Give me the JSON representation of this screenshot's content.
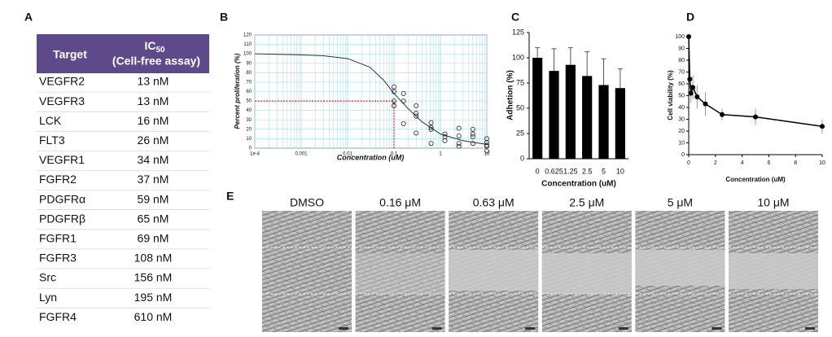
{
  "panel_labels": [
    "A",
    "B",
    "C",
    "D",
    "E"
  ],
  "table": {
    "header": {
      "target": "Target",
      "ic50": {
        "main": "IC",
        "sub": "50",
        "note": "(Cell-free assay)"
      },
      "color": "#5e4a8b"
    },
    "rows": [
      [
        "VEGFR2",
        "13 nM"
      ],
      [
        "VEGFR3",
        "13 nM"
      ],
      [
        "LCK",
        "16 nM"
      ],
      [
        "FLT3",
        "26 nM"
      ],
      [
        "VEGFR1",
        "34 nM"
      ],
      [
        "FGFR2",
        "37 nM"
      ],
      [
        "PDGFRα",
        "59 nM"
      ],
      [
        "PDGFRβ",
        "65 nM"
      ],
      [
        "FGFR1",
        "69 nM"
      ],
      [
        "FGFR3",
        "108 nM"
      ],
      [
        "Src",
        "156 nM"
      ],
      [
        "Lyn",
        "195 nM"
      ],
      [
        "FGFR4",
        "610 nM"
      ]
    ]
  },
  "chart_data": [
    {
      "type": "log-scatter",
      "x_label": "Concentration (uM)",
      "y_label": "Percent proliferation (%)",
      "xlim": [
        0.0001,
        10
      ],
      "xticks": [
        {
          "value": 0.0001,
          "label": "1e-4"
        },
        0.001,
        0.01,
        0.1,
        1,
        10
      ],
      "ylim": [
        0,
        120
      ],
      "yticks": [
        0,
        10,
        20,
        30,
        40,
        50,
        60,
        70,
        80,
        90,
        100,
        110,
        120
      ],
      "log_x": true,
      "grid": true,
      "minor_grid": true,
      "grid_color": "#9fdcee",
      "points": {
        "x": [
          0.1,
          0.1,
          0.1,
          0.1,
          0.16,
          0.16,
          0.16,
          0.3,
          0.3,
          0.3,
          0.3,
          0.63,
          0.63,
          0.63,
          0.63,
          1.25,
          1.25,
          1.25,
          2.5,
          2.5,
          2.5,
          2.5,
          5,
          5,
          5,
          5,
          10,
          10,
          10,
          10,
          10
        ],
        "values": [
          65,
          60,
          45,
          50,
          58,
          50,
          26,
          45,
          37,
          34,
          16,
          27,
          22,
          20,
          5,
          15,
          12,
          8,
          21,
          13,
          5,
          2,
          20,
          15,
          12,
          5,
          10,
          6,
          3,
          -3,
          2
        ],
        "color": "#222222"
      },
      "curve": {
        "x": [
          0.0001,
          0.001,
          0.003,
          0.01,
          0.03,
          0.06,
          0.1,
          0.2,
          0.4,
          1,
          3,
          10
        ],
        "values": [
          100,
          99,
          98,
          95,
          86,
          72,
          58,
          42,
          28,
          15,
          8,
          4
        ],
        "color": "#333333"
      },
      "ic50_guide": {
        "x": 0.1,
        "y": 50,
        "color": "#c00000"
      }
    },
    {
      "type": "bar",
      "x_label": "Concentration (uM)",
      "y_label": "Adhetion (%)",
      "categories": [
        "0",
        "0.625",
        "1.25",
        "2.5",
        "5",
        "10"
      ],
      "values": [
        100,
        87,
        93,
        82,
        73,
        70
      ],
      "errors": [
        10,
        22,
        17,
        24,
        26,
        19
      ],
      "color": "#000000",
      "ylim": [
        0,
        125
      ],
      "yticks": [
        0,
        25,
        50,
        75,
        100,
        125
      ]
    },
    {
      "type": "line",
      "x_label": "Concentration (uM)",
      "y_label": "Cell viability (%)",
      "x": [
        0,
        0.08,
        0.16,
        0.31,
        0.63,
        1.25,
        2.5,
        5,
        10
      ],
      "values": [
        100,
        64,
        52,
        57,
        49,
        43,
        34,
        32,
        24
      ],
      "errors": [
        0,
        8,
        8,
        10,
        10,
        10,
        5,
        7,
        6
      ],
      "color": "#000000",
      "xlim": [
        0,
        10
      ],
      "xticks": [
        0,
        2,
        4,
        6,
        8,
        10
      ],
      "ylim": [
        0,
        100
      ],
      "yticks": [
        0,
        10,
        20,
        30,
        40,
        50,
        60,
        70,
        80,
        90,
        100
      ]
    }
  ],
  "images": [
    "DMSO",
    "0.16 μM",
    "0.63 μM",
    "2.5 μM",
    "5 μM",
    "10 μM"
  ]
}
